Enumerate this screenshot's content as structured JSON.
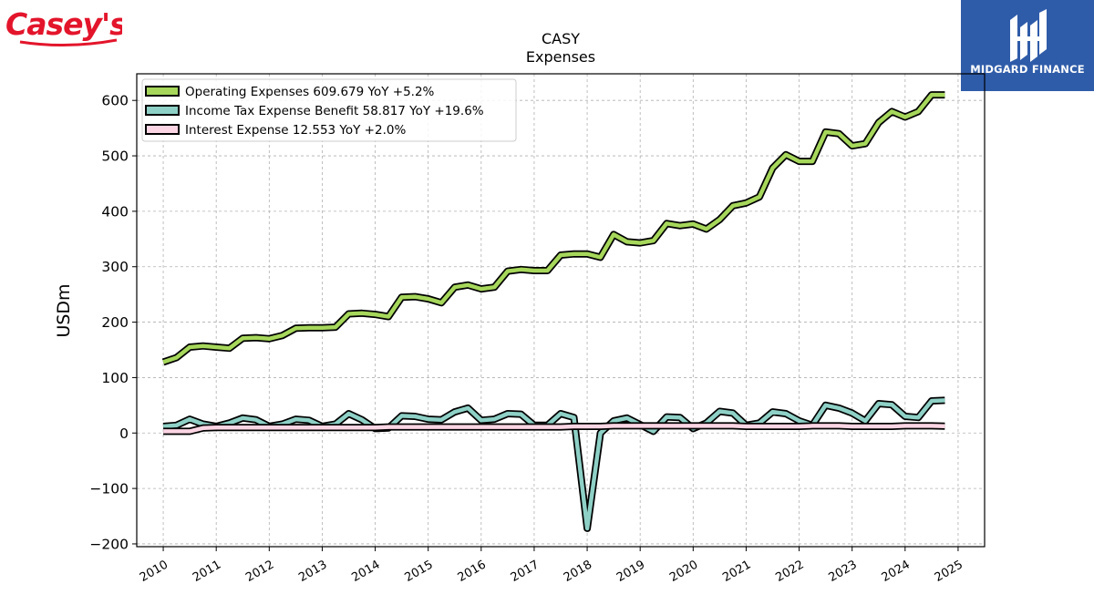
{
  "brand": {
    "name": "Casey's",
    "color": "#e3152b"
  },
  "sponsor": {
    "name": "MIDGARD FINANCE",
    "background": "#2f5ca9",
    "text_color": "#ffffff"
  },
  "chart_data": {
    "type": "line",
    "title": "CASY",
    "subtitle": "Expenses",
    "ylabel": "USDm",
    "xlabel": "",
    "xlim": [
      2009.5,
      2025.5
    ],
    "ylim": [
      -205,
      648
    ],
    "yticks": [
      -200,
      -100,
      0,
      100,
      200,
      300,
      400,
      500,
      600
    ],
    "ytick_labels": [
      "−200",
      "−100",
      "0",
      "100",
      "200",
      "300",
      "400",
      "500",
      "600"
    ],
    "xticks": [
      2010,
      2011,
      2012,
      2013,
      2014,
      2015,
      2016,
      2017,
      2018,
      2019,
      2020,
      2021,
      2022,
      2023,
      2024,
      2025
    ],
    "xtick_labels": [
      "2010",
      "2011",
      "2012",
      "2013",
      "2014",
      "2015",
      "2016",
      "2017",
      "2018",
      "2019",
      "2020",
      "2021",
      "2022",
      "2023",
      "2024",
      "2025"
    ],
    "grid": true,
    "legend_position": "top-left",
    "x": [
      2010.0,
      2010.25,
      2010.5,
      2010.75,
      2011.0,
      2011.25,
      2011.5,
      2011.75,
      2012.0,
      2012.25,
      2012.5,
      2012.75,
      2013.0,
      2013.25,
      2013.5,
      2013.75,
      2014.0,
      2014.25,
      2014.5,
      2014.75,
      2015.0,
      2015.25,
      2015.5,
      2015.75,
      2016.0,
      2016.25,
      2016.5,
      2016.75,
      2017.0,
      2017.25,
      2017.5,
      2017.75,
      2018.0,
      2018.25,
      2018.5,
      2018.75,
      2019.0,
      2019.25,
      2019.5,
      2019.75,
      2020.0,
      2020.25,
      2020.5,
      2020.75,
      2021.0,
      2021.25,
      2021.5,
      2021.75,
      2022.0,
      2022.25,
      2022.5,
      2022.75,
      2023.0,
      2023.25,
      2023.5,
      2023.75,
      2024.0,
      2024.25,
      2024.5,
      2024.75
    ],
    "series": [
      {
        "name": "Operating Expenses",
        "legend_label": "Operating Expenses  609.679 YoY +5.2%",
        "color": "#a6d75b",
        "values": [
          128,
          136,
          155,
          157,
          155,
          153,
          171,
          172,
          170,
          176,
          189,
          190,
          190,
          191,
          215,
          216,
          214,
          210,
          245,
          246,
          242,
          235,
          263,
          267,
          260,
          263,
          292,
          295,
          293,
          293,
          321,
          323,
          323,
          317,
          358,
          345,
          343,
          347,
          378,
          374,
          377,
          368,
          385,
          410,
          415,
          426,
          478,
          502,
          490,
          490,
          543,
          540,
          518,
          522,
          560,
          580,
          570,
          580,
          610,
          610
        ]
      },
      {
        "name": "Income Tax Expense Benefit",
        "legend_label": "Income Tax Expense Benefit  58.817 YoY +19.6%",
        "color": "#8ed0c6",
        "values": [
          12,
          14,
          25,
          16,
          12,
          18,
          27,
          24,
          12,
          16,
          25,
          23,
          12,
          16,
          35,
          24,
          8,
          9,
          31,
          30,
          25,
          24,
          38,
          45,
          23,
          25,
          35,
          34,
          14,
          14,
          35,
          28,
          -172,
          0,
          22,
          27,
          15,
          3,
          29,
          28,
          8,
          18,
          39,
          36,
          14,
          18,
          38,
          35,
          22,
          14,
          50,
          45,
          36,
          22,
          53,
          51,
          30,
          28,
          58,
          59
        ]
      },
      {
        "name": "Interest Expense",
        "legend_label": "Interest Expense  12.553 YoY +2.0%",
        "color": "#fbd5e3",
        "values": [
          3,
          3,
          3,
          9,
          10,
          10,
          10,
          10,
          10,
          10,
          10,
          10,
          10,
          10,
          10,
          10,
          10,
          11,
          11,
          11,
          11,
          11,
          11,
          11,
          11,
          11,
          11,
          11,
          11,
          11,
          11,
          12,
          12,
          12,
          13,
          13,
          13,
          13,
          13,
          13,
          13,
          13,
          13,
          13,
          12,
          12,
          12,
          12,
          12,
          13,
          13,
          13,
          12,
          12,
          12,
          12,
          13,
          13,
          13,
          12.5
        ]
      }
    ]
  }
}
